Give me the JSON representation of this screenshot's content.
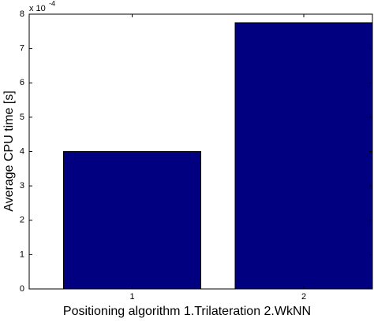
{
  "chart_data": {
    "type": "bar",
    "x_label": "Positioning algorithm 1.Trilateration 2.WkNN",
    "y_label": "Average CPU time [s]",
    "y_scale_label": {
      "base": "x 10",
      "exponent": "-4"
    },
    "x": [
      1,
      2
    ],
    "values": [
      4.0,
      7.75
    ],
    "color": "#000080",
    "xlim": [
      0.4,
      2.4
    ],
    "xticks": [
      1,
      2
    ],
    "ylim": [
      0,
      8
    ],
    "yticks": [
      0,
      1,
      2,
      3,
      4,
      5,
      6,
      7,
      8
    ],
    "bar_width": 0.8
  }
}
